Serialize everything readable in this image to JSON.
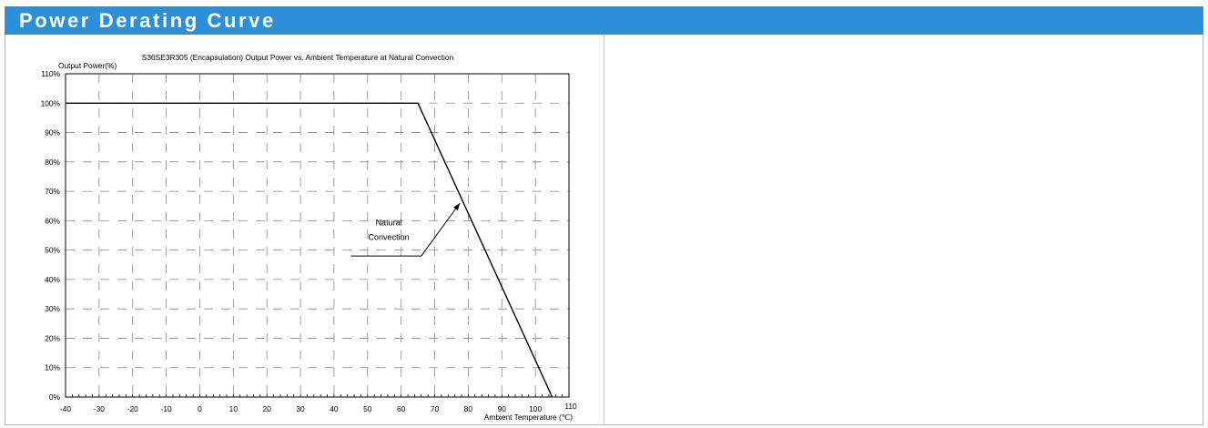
{
  "header": {
    "title": "Power Derating Curve"
  },
  "colors": {
    "banner": "#2b90d9",
    "banner_text": "#ffffff",
    "curve": "#000000",
    "grid": "#888888"
  },
  "chart_data": {
    "type": "line",
    "title": "S36SE3R305 (Encapsulation)  Output Power vs. Ambient Temperature at Natural Convection",
    "xlabel": "Ambient Temperature (℃)",
    "ylabel": "Output Power(%)",
    "xlim": [
      -40,
      110
    ],
    "ylim": [
      0,
      110
    ],
    "x_ticks": [
      -40,
      -30,
      -20,
      -10,
      0,
      10,
      20,
      30,
      40,
      50,
      60,
      70,
      80,
      90,
      100,
      110
    ],
    "y_ticks": [
      0,
      10,
      20,
      30,
      40,
      50,
      60,
      70,
      80,
      90,
      100,
      110
    ],
    "y_tick_suffix": "%",
    "grid": true,
    "grid_style": "dashed",
    "series": [
      {
        "name": "Natural Convection",
        "x": [
          -40,
          65,
          105
        ],
        "y": [
          100,
          100,
          0
        ]
      }
    ],
    "annotation": {
      "text_lines": [
        "Natural",
        "Convection"
      ],
      "leader_start": {
        "x": 45,
        "y": 48
      },
      "leader_elbow": {
        "x": 66,
        "y": 48
      },
      "arrow_tip": {
        "x": 77.5,
        "y": 66
      }
    }
  }
}
